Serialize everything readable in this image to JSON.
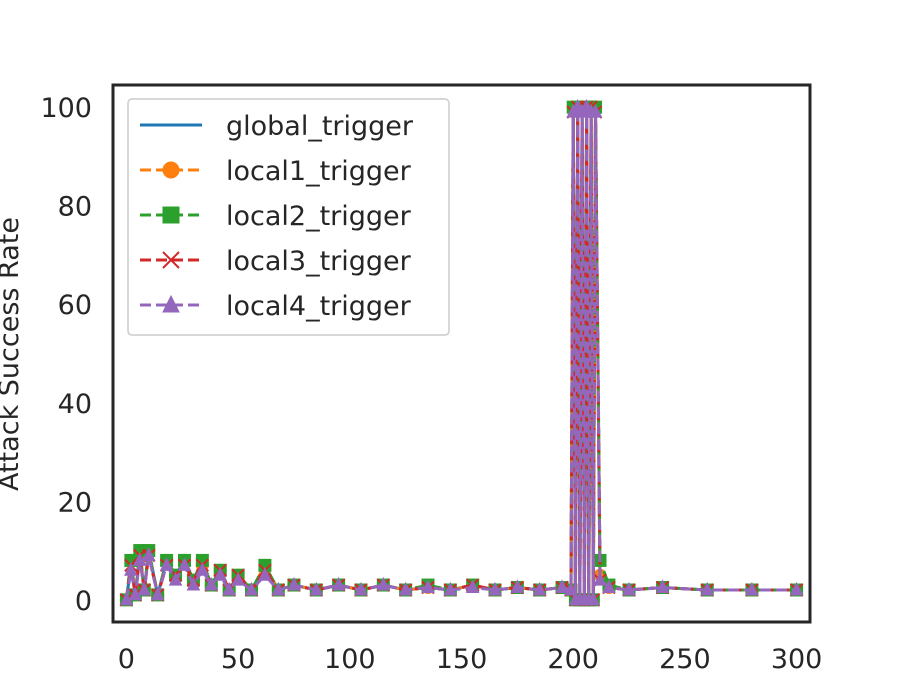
{
  "chart_data": {
    "type": "line",
    "title": "",
    "xlabel": "",
    "ylabel": "Attack Success Rate",
    "xlim": [
      -6,
      306
    ],
    "ylim": [
      -4.5,
      104.5
    ],
    "xticks": [
      0,
      50,
      100,
      150,
      200,
      250,
      300
    ],
    "yticks": [
      0,
      20,
      40,
      60,
      80,
      100
    ],
    "grid": false,
    "legend_position": "top-left",
    "series": [
      {
        "name": "global_trigger",
        "color": "#1f77b4",
        "line": "solid",
        "marker": "none",
        "x": [
          0,
          2,
          4,
          6,
          8,
          10,
          14,
          18,
          22,
          26,
          30,
          34,
          38,
          42,
          46,
          50,
          56,
          62,
          68,
          75,
          85,
          95,
          105,
          115,
          125,
          135,
          145,
          155,
          165,
          175,
          185,
          195,
          199,
          200,
          201,
          202,
          203,
          204,
          205,
          206,
          207,
          208,
          209,
          210,
          212,
          216,
          225,
          240,
          260,
          280,
          300
        ],
        "y": [
          0,
          7,
          1,
          9,
          2,
          10,
          1,
          8,
          5,
          8,
          4,
          7,
          3,
          6,
          2,
          5,
          2,
          6,
          2,
          3,
          2,
          3,
          2,
          3,
          2,
          2.5,
          2,
          3,
          2,
          2.5,
          2,
          2.5,
          2,
          99,
          0,
          100,
          0,
          99,
          0,
          100,
          0,
          100,
          0,
          99,
          4,
          2.5,
          2,
          2.5,
          2,
          2,
          2
        ]
      },
      {
        "name": "local1_trigger",
        "color": "#ff7f0e",
        "line": "dashed",
        "marker": "circle",
        "x": [
          0,
          2,
          4,
          6,
          8,
          10,
          14,
          18,
          22,
          26,
          30,
          34,
          38,
          42,
          46,
          50,
          56,
          62,
          68,
          75,
          85,
          95,
          105,
          115,
          125,
          135,
          145,
          155,
          165,
          175,
          185,
          195,
          199,
          200,
          201,
          202,
          203,
          204,
          205,
          206,
          207,
          208,
          209,
          210,
          212,
          216,
          225,
          240,
          260,
          280,
          300
        ],
        "y": [
          0,
          8,
          1,
          10,
          2,
          10,
          1,
          8,
          5,
          8,
          4,
          7,
          3,
          6,
          2,
          5,
          2,
          7,
          2,
          3,
          2,
          3,
          2,
          3,
          2,
          2.5,
          2,
          3,
          2,
          2.5,
          2,
          2.5,
          2,
          100,
          0,
          100,
          0,
          100,
          0,
          100,
          0,
          100,
          0,
          100,
          5,
          2.5,
          2,
          2.5,
          2,
          2,
          2
        ]
      },
      {
        "name": "local2_trigger",
        "color": "#2ca02c",
        "line": "dashed",
        "marker": "square",
        "x": [
          0,
          2,
          4,
          6,
          8,
          10,
          14,
          18,
          22,
          26,
          30,
          34,
          38,
          42,
          46,
          50,
          56,
          62,
          68,
          75,
          85,
          95,
          105,
          115,
          125,
          135,
          145,
          155,
          165,
          175,
          185,
          195,
          199,
          200,
          201,
          202,
          203,
          204,
          205,
          206,
          207,
          208,
          209,
          210,
          212,
          216,
          225,
          240,
          260,
          280,
          300
        ],
        "y": [
          0,
          8,
          1,
          10,
          2,
          10,
          1,
          8,
          5,
          8,
          4,
          8,
          3,
          6,
          2,
          5,
          2,
          7,
          2,
          3,
          2,
          3,
          2,
          3,
          2,
          3,
          2,
          3,
          2,
          2.5,
          2,
          2.5,
          2,
          100,
          0,
          100,
          0,
          100,
          0,
          100,
          0,
          100,
          0,
          100,
          8,
          3,
          2,
          2.5,
          2,
          2,
          2
        ]
      },
      {
        "name": "local3_trigger",
        "color": "#d62728",
        "line": "dashed",
        "marker": "x",
        "x": [
          0,
          2,
          4,
          6,
          8,
          10,
          14,
          18,
          22,
          26,
          30,
          34,
          38,
          42,
          46,
          50,
          56,
          62,
          68,
          75,
          85,
          95,
          105,
          115,
          125,
          135,
          145,
          155,
          165,
          175,
          185,
          195,
          199,
          200,
          201,
          202,
          203,
          204,
          205,
          206,
          207,
          208,
          209,
          210,
          212,
          216,
          225,
          240,
          260,
          280,
          300
        ],
        "y": [
          0,
          7,
          1,
          9,
          2,
          9,
          1,
          7,
          5,
          7,
          4,
          7,
          3,
          6,
          2,
          5,
          2,
          6,
          2,
          3,
          2,
          3,
          2,
          3,
          2,
          2.5,
          2,
          3,
          2,
          2.5,
          2,
          2.5,
          2,
          99,
          0,
          100,
          0,
          99,
          0,
          100,
          0,
          100,
          0,
          99,
          4,
          2.5,
          2,
          2.5,
          2,
          2,
          2
        ]
      },
      {
        "name": "local4_trigger",
        "color": "#9467bd",
        "line": "dashed",
        "marker": "triangle",
        "x": [
          0,
          2,
          4,
          6,
          8,
          10,
          14,
          18,
          22,
          26,
          30,
          34,
          38,
          42,
          46,
          50,
          56,
          62,
          68,
          75,
          85,
          95,
          105,
          115,
          125,
          135,
          145,
          155,
          165,
          175,
          185,
          195,
          199,
          200,
          201,
          202,
          203,
          204,
          205,
          206,
          207,
          208,
          209,
          210,
          212,
          216,
          225,
          240,
          260,
          280,
          300
        ],
        "y": [
          0,
          6,
          1,
          8,
          2,
          9,
          1,
          7,
          4,
          7,
          3,
          6,
          3,
          5,
          2,
          4,
          2,
          5,
          2,
          3,
          2,
          3,
          2,
          3,
          2,
          2.5,
          2,
          2.5,
          2,
          2.5,
          2,
          2.5,
          2,
          99,
          0,
          100,
          0,
          99,
          0,
          100,
          0,
          99,
          0,
          99,
          4,
          2.5,
          2,
          2.5,
          2,
          2,
          2
        ]
      }
    ]
  }
}
